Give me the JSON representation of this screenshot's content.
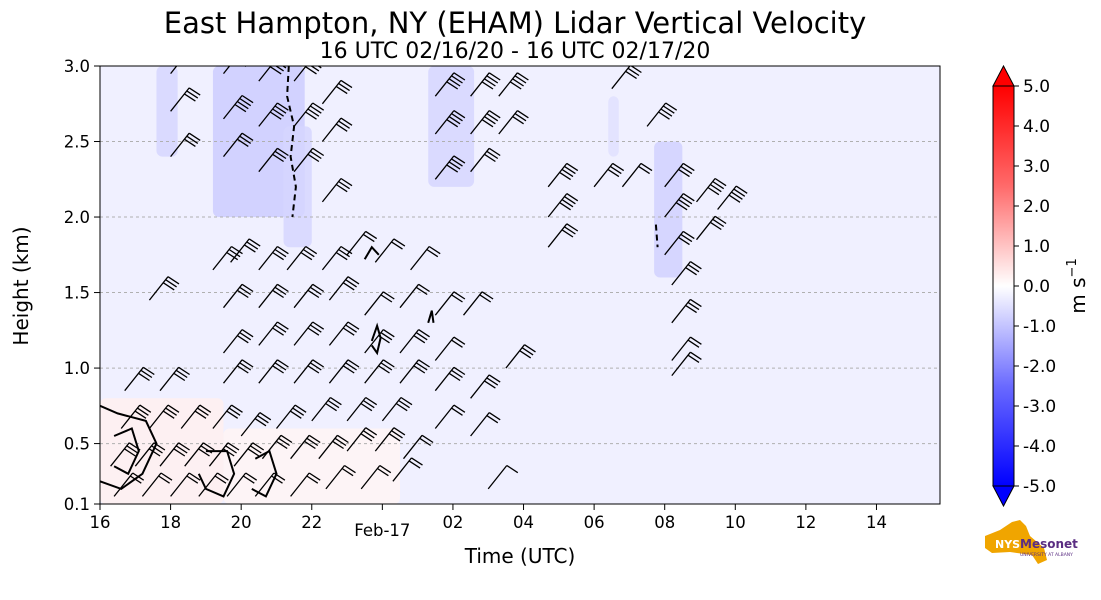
{
  "chart_data": {
    "type": "heatmap",
    "title": "East Hampton, NY (EHAM) Lidar Vertical Velocity",
    "subtitle": "16 UTC 02/16/20 - 16 UTC 02/17/20",
    "xlabel": "Time (UTC)",
    "ylabel": "Height (km)",
    "xlim": [
      16,
      39.8
    ],
    "ylim": [
      0.1,
      3.0
    ],
    "x_ticks": [
      {
        "x": 16,
        "label": "16"
      },
      {
        "x": 18,
        "label": "18"
      },
      {
        "x": 20,
        "label": "20"
      },
      {
        "x": 22,
        "label": "22"
      },
      {
        "x": 24,
        "label": "Feb-17"
      },
      {
        "x": 26,
        "label": "02"
      },
      {
        "x": 28,
        "label": "04"
      },
      {
        "x": 30,
        "label": "06"
      },
      {
        "x": 32,
        "label": "08"
      },
      {
        "x": 34,
        "label": "10"
      },
      {
        "x": 36,
        "label": "12"
      },
      {
        "x": 38,
        "label": "14"
      }
    ],
    "y_ticks": [
      {
        "y": 0.1,
        "label": "0.1"
      },
      {
        "y": 0.5,
        "label": "0.5"
      },
      {
        "y": 1.0,
        "label": "1.0"
      },
      {
        "y": 1.5,
        "label": "1.5"
      },
      {
        "y": 2.0,
        "label": "2.0"
      },
      {
        "y": 2.5,
        "label": "2.5"
      },
      {
        "y": 3.0,
        "label": "3.0"
      }
    ],
    "grid": "horizontal dashed",
    "background_value": -0.3,
    "colorbar": {
      "label": "m s",
      "label_superscript": "−1",
      "range": [
        -5.0,
        5.0
      ],
      "extend": "both",
      "ticks": [
        "5.0",
        "4.0",
        "3.0",
        "2.0",
        "1.0",
        "0.0",
        "-1.0",
        "-2.0",
        "-3.0",
        "-4.0",
        "-5.0"
      ],
      "colors": {
        "min": "#0000ff",
        "zero": "#ffffff",
        "max": "#ff0000"
      }
    },
    "velocity_regions": [
      {
        "x": [
          17.6,
          18.2
        ],
        "y": [
          2.4,
          3.0
        ],
        "value": -0.8
      },
      {
        "x": [
          19.2,
          21.8
        ],
        "y": [
          2.0,
          3.0
        ],
        "value": -1.0
      },
      {
        "x": [
          21.2,
          22.0
        ],
        "y": [
          1.8,
          2.6
        ],
        "value": -0.8
      },
      {
        "x": [
          25.3,
          26.6
        ],
        "y": [
          2.2,
          3.0
        ],
        "value": -0.8
      },
      {
        "x": [
          30.4,
          30.7
        ],
        "y": [
          2.4,
          2.8
        ],
        "value": -0.6
      },
      {
        "x": [
          31.7,
          32.5
        ],
        "y": [
          1.6,
          2.5
        ],
        "value": -0.9
      },
      {
        "x": [
          16.0,
          19.5
        ],
        "y": [
          0.1,
          0.8
        ],
        "value": 0.3
      },
      {
        "x": [
          19.5,
          24.5
        ],
        "y": [
          0.1,
          0.6
        ],
        "value": 0.2
      }
    ],
    "wind_barbs": {
      "note": "wind direction arrows with speed flags, from the westerly sector",
      "points": [
        {
          "x": 18.0,
          "y": 2.95,
          "flags": 3
        },
        {
          "x": 18.0,
          "y": 2.7,
          "flags": 3
        },
        {
          "x": 18.0,
          "y": 2.4,
          "flags": 3
        },
        {
          "x": 19.5,
          "y": 2.95,
          "flags": 4
        },
        {
          "x": 19.5,
          "y": 2.65,
          "flags": 4
        },
        {
          "x": 19.5,
          "y": 2.4,
          "flags": 3
        },
        {
          "x": 20.5,
          "y": 2.9,
          "flags": 4
        },
        {
          "x": 20.5,
          "y": 2.6,
          "flags": 4
        },
        {
          "x": 20.5,
          "y": 2.3,
          "flags": 3
        },
        {
          "x": 21.5,
          "y": 2.9,
          "flags": 4
        },
        {
          "x": 21.5,
          "y": 2.6,
          "flags": 4
        },
        {
          "x": 21.5,
          "y": 2.3,
          "flags": 3
        },
        {
          "x": 22.3,
          "y": 2.75,
          "flags": 3
        },
        {
          "x": 22.3,
          "y": 2.5,
          "flags": 3
        },
        {
          "x": 22.3,
          "y": 2.1,
          "flags": 3
        },
        {
          "x": 25.5,
          "y": 2.8,
          "flags": 4
        },
        {
          "x": 25.5,
          "y": 2.55,
          "flags": 4
        },
        {
          "x": 25.5,
          "y": 2.25,
          "flags": 4
        },
        {
          "x": 26.5,
          "y": 2.8,
          "flags": 4
        },
        {
          "x": 26.5,
          "y": 2.55,
          "flags": 4
        },
        {
          "x": 26.5,
          "y": 2.3,
          "flags": 3
        },
        {
          "x": 27.3,
          "y": 2.8,
          "flags": 4
        },
        {
          "x": 27.3,
          "y": 2.55,
          "flags": 3
        },
        {
          "x": 30.5,
          "y": 2.85,
          "flags": 3
        },
        {
          "x": 31.5,
          "y": 2.6,
          "flags": 4
        },
        {
          "x": 28.7,
          "y": 2.2,
          "flags": 4
        },
        {
          "x": 28.7,
          "y": 2.0,
          "flags": 4
        },
        {
          "x": 28.7,
          "y": 1.8,
          "flags": 3
        },
        {
          "x": 30.0,
          "y": 2.2,
          "flags": 3
        },
        {
          "x": 30.8,
          "y": 2.2,
          "flags": 2
        },
        {
          "x": 32.0,
          "y": 2.2,
          "flags": 3
        },
        {
          "x": 32.0,
          "y": 2.0,
          "flags": 4
        },
        {
          "x": 32.0,
          "y": 1.75,
          "flags": 3
        },
        {
          "x": 32.9,
          "y": 2.1,
          "flags": 4
        },
        {
          "x": 32.9,
          "y": 1.85,
          "flags": 3
        },
        {
          "x": 33.5,
          "y": 2.05,
          "flags": 4
        },
        {
          "x": 32.2,
          "y": 1.55,
          "flags": 3
        },
        {
          "x": 32.2,
          "y": 1.3,
          "flags": 3
        },
        {
          "x": 32.2,
          "y": 1.05,
          "flags": 2
        },
        {
          "x": 32.2,
          "y": 0.95,
          "flags": 2
        },
        {
          "x": 17.4,
          "y": 1.45,
          "flags": 3
        },
        {
          "x": 19.2,
          "y": 1.65,
          "flags": 3
        },
        {
          "x": 19.7,
          "y": 1.7,
          "flags": 3
        },
        {
          "x": 20.5,
          "y": 1.65,
          "flags": 3
        },
        {
          "x": 21.3,
          "y": 1.65,
          "flags": 3
        },
        {
          "x": 22.3,
          "y": 1.65,
          "flags": 3
        },
        {
          "x": 23.0,
          "y": 1.75,
          "flags": 2
        },
        {
          "x": 23.8,
          "y": 1.7,
          "flags": 2
        },
        {
          "x": 24.8,
          "y": 1.65,
          "flags": 2
        },
        {
          "x": 19.5,
          "y": 1.4,
          "flags": 3
        },
        {
          "x": 20.5,
          "y": 1.4,
          "flags": 3
        },
        {
          "x": 21.5,
          "y": 1.4,
          "flags": 3
        },
        {
          "x": 22.5,
          "y": 1.45,
          "flags": 3
        },
        {
          "x": 23.5,
          "y": 1.35,
          "flags": 2
        },
        {
          "x": 24.5,
          "y": 1.4,
          "flags": 2
        },
        {
          "x": 25.5,
          "y": 1.35,
          "flags": 2
        },
        {
          "x": 26.3,
          "y": 1.35,
          "flags": 2
        },
        {
          "x": 19.5,
          "y": 1.1,
          "flags": 3
        },
        {
          "x": 20.5,
          "y": 1.15,
          "flags": 3
        },
        {
          "x": 21.5,
          "y": 1.15,
          "flags": 3
        },
        {
          "x": 22.5,
          "y": 1.15,
          "flags": 3
        },
        {
          "x": 23.5,
          "y": 1.1,
          "flags": 3
        },
        {
          "x": 24.5,
          "y": 1.1,
          "flags": 3
        },
        {
          "x": 25.5,
          "y": 1.05,
          "flags": 2
        },
        {
          "x": 27.5,
          "y": 1.0,
          "flags": 3
        },
        {
          "x": 16.7,
          "y": 0.85,
          "flags": 3
        },
        {
          "x": 17.7,
          "y": 0.85,
          "flags": 3
        },
        {
          "x": 19.5,
          "y": 0.9,
          "flags": 3
        },
        {
          "x": 20.5,
          "y": 0.9,
          "flags": 3
        },
        {
          "x": 21.5,
          "y": 0.9,
          "flags": 3
        },
        {
          "x": 22.5,
          "y": 0.9,
          "flags": 3
        },
        {
          "x": 23.5,
          "y": 0.9,
          "flags": 3
        },
        {
          "x": 24.5,
          "y": 0.9,
          "flags": 3
        },
        {
          "x": 25.5,
          "y": 0.85,
          "flags": 3
        },
        {
          "x": 26.5,
          "y": 0.8,
          "flags": 3
        },
        {
          "x": 16.6,
          "y": 0.6,
          "flags": 3
        },
        {
          "x": 17.4,
          "y": 0.6,
          "flags": 3
        },
        {
          "x": 18.3,
          "y": 0.6,
          "flags": 3
        },
        {
          "x": 19.2,
          "y": 0.6,
          "flags": 3
        },
        {
          "x": 20.0,
          "y": 0.55,
          "flags": 3
        },
        {
          "x": 21.0,
          "y": 0.6,
          "flags": 3
        },
        {
          "x": 22.0,
          "y": 0.65,
          "flags": 3
        },
        {
          "x": 23.0,
          "y": 0.65,
          "flags": 3
        },
        {
          "x": 24.0,
          "y": 0.65,
          "flags": 3
        },
        {
          "x": 25.5,
          "y": 0.6,
          "flags": 2
        },
        {
          "x": 26.5,
          "y": 0.55,
          "flags": 2
        },
        {
          "x": 16.3,
          "y": 0.35,
          "flags": 3
        },
        {
          "x": 17.0,
          "y": 0.35,
          "flags": 3
        },
        {
          "x": 17.7,
          "y": 0.35,
          "flags": 3
        },
        {
          "x": 18.4,
          "y": 0.35,
          "flags": 3
        },
        {
          "x": 19.1,
          "y": 0.35,
          "flags": 3
        },
        {
          "x": 19.8,
          "y": 0.35,
          "flags": 3
        },
        {
          "x": 20.6,
          "y": 0.4,
          "flags": 3
        },
        {
          "x": 21.4,
          "y": 0.4,
          "flags": 3
        },
        {
          "x": 22.2,
          "y": 0.4,
          "flags": 3
        },
        {
          "x": 23.0,
          "y": 0.45,
          "flags": 3
        },
        {
          "x": 23.8,
          "y": 0.45,
          "flags": 3
        },
        {
          "x": 24.6,
          "y": 0.4,
          "flags": 2
        },
        {
          "x": 16.4,
          "y": 0.15,
          "flags": 2
        },
        {
          "x": 17.2,
          "y": 0.15,
          "flags": 2
        },
        {
          "x": 18.0,
          "y": 0.15,
          "flags": 2
        },
        {
          "x": 18.8,
          "y": 0.15,
          "flags": 2
        },
        {
          "x": 19.6,
          "y": 0.15,
          "flags": 2
        },
        {
          "x": 20.4,
          "y": 0.15,
          "flags": 2
        },
        {
          "x": 21.4,
          "y": 0.15,
          "flags": 2
        },
        {
          "x": 22.4,
          "y": 0.2,
          "flags": 2
        },
        {
          "x": 23.4,
          "y": 0.2,
          "flags": 2
        },
        {
          "x": 24.3,
          "y": 0.25,
          "flags": 2
        },
        {
          "x": 27.0,
          "y": 0.2,
          "flags": 1
        }
      ]
    },
    "contours": [
      {
        "style": "dashed",
        "points": [
          [
            21.35,
            3.0
          ],
          [
            21.3,
            2.8
          ],
          [
            21.5,
            2.6
          ],
          [
            21.4,
            2.4
          ],
          [
            21.55,
            2.2
          ],
          [
            21.45,
            2.0
          ]
        ]
      },
      {
        "style": "dashed",
        "points": [
          [
            31.75,
            1.95
          ],
          [
            31.8,
            1.8
          ]
        ]
      },
      {
        "style": "solid",
        "points": [
          [
            23.7,
            1.18
          ],
          [
            23.85,
            1.28
          ],
          [
            23.95,
            1.2
          ],
          [
            23.85,
            1.1
          ],
          [
            23.7,
            1.15
          ]
        ]
      },
      {
        "style": "solid",
        "points": [
          [
            25.3,
            1.3
          ],
          [
            25.4,
            1.38
          ],
          [
            25.45,
            1.3
          ]
        ]
      },
      {
        "style": "solid",
        "points": [
          [
            16.0,
            0.75
          ],
          [
            16.5,
            0.7
          ],
          [
            17.3,
            0.65
          ],
          [
            17.6,
            0.5
          ],
          [
            17.2,
            0.3
          ],
          [
            16.6,
            0.2
          ],
          [
            16.0,
            0.25
          ]
        ]
      },
      {
        "style": "solid",
        "points": [
          [
            16.4,
            0.55
          ],
          [
            16.9,
            0.6
          ],
          [
            17.1,
            0.45
          ],
          [
            16.8,
            0.3
          ],
          [
            16.4,
            0.35
          ]
        ]
      },
      {
        "style": "solid",
        "points": [
          [
            19.0,
            0.45
          ],
          [
            19.6,
            0.45
          ],
          [
            19.8,
            0.3
          ],
          [
            19.5,
            0.15
          ],
          [
            19.0,
            0.2
          ],
          [
            18.8,
            0.3
          ]
        ]
      },
      {
        "style": "solid",
        "points": [
          [
            20.4,
            0.4
          ],
          [
            20.8,
            0.45
          ],
          [
            21.0,
            0.3
          ],
          [
            20.7,
            0.15
          ],
          [
            20.3,
            0.2
          ]
        ]
      },
      {
        "style": "solid",
        "points": [
          [
            23.5,
            1.72
          ],
          [
            23.7,
            1.8
          ],
          [
            23.9,
            1.75
          ]
        ]
      }
    ]
  },
  "logo": {
    "text_top": "NYS",
    "text_main": "Mesonet",
    "text_sub": "UNIVERSITY AT ALBANY",
    "color_state": "#f0a500",
    "color_text": "#5a2d82"
  }
}
